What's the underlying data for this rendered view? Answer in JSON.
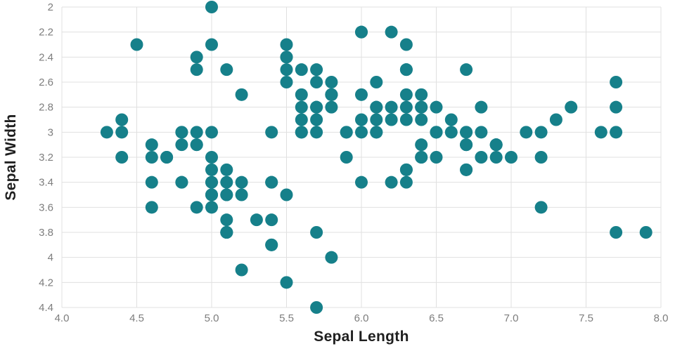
{
  "chart_data": {
    "type": "scatter",
    "title": "",
    "xlabel": "Sepal Length",
    "ylabel": "Sepal Width",
    "xlim": [
      4.0,
      8.0
    ],
    "ylim_top_to_bottom": [
      2.0,
      4.4
    ],
    "y_axis_inverted": true,
    "grid": true,
    "legend": "none",
    "dot_color": "#16808a",
    "grid_color": "#e0e0e0",
    "tick_label_color": "#7d7d7d",
    "x_ticks": [
      "4.0",
      "4.5",
      "5.0",
      "5.5",
      "6.0",
      "6.5",
      "7.0",
      "7.5",
      "8.0"
    ],
    "x_tick_values": [
      4.0,
      4.5,
      5.0,
      5.5,
      6.0,
      6.5,
      7.0,
      7.5,
      8.0
    ],
    "y_ticks": [
      "2",
      "2.2",
      "2.4",
      "2.6",
      "2.8",
      "3",
      "3.2",
      "3.4",
      "3.6",
      "3.8",
      "4",
      "4.2",
      "4.4"
    ],
    "y_tick_values": [
      2.0,
      2.2,
      2.4,
      2.6,
      2.8,
      3.0,
      3.2,
      3.4,
      3.6,
      3.8,
      4.0,
      4.2,
      4.4
    ],
    "points": [
      [
        5.1,
        3.5
      ],
      [
        4.9,
        3.0
      ],
      [
        4.7,
        3.2
      ],
      [
        4.6,
        3.1
      ],
      [
        5.0,
        3.6
      ],
      [
        5.4,
        3.9
      ],
      [
        4.6,
        3.4
      ],
      [
        5.0,
        3.4
      ],
      [
        4.4,
        2.9
      ],
      [
        4.9,
        3.1
      ],
      [
        5.4,
        3.7
      ],
      [
        4.8,
        3.4
      ],
      [
        4.8,
        3.0
      ],
      [
        4.3,
        3.0
      ],
      [
        5.8,
        4.0
      ],
      [
        5.7,
        4.4
      ],
      [
        5.4,
        3.9
      ],
      [
        5.1,
        3.5
      ],
      [
        5.7,
        3.8
      ],
      [
        5.1,
        3.8
      ],
      [
        5.4,
        3.4
      ],
      [
        5.1,
        3.7
      ],
      [
        4.6,
        3.6
      ],
      [
        5.1,
        3.3
      ],
      [
        4.8,
        3.4
      ],
      [
        5.0,
        3.0
      ],
      [
        5.0,
        3.4
      ],
      [
        5.2,
        3.5
      ],
      [
        5.2,
        3.4
      ],
      [
        4.7,
        3.2
      ],
      [
        4.8,
        3.1
      ],
      [
        5.4,
        3.4
      ],
      [
        5.2,
        4.1
      ],
      [
        5.5,
        4.2
      ],
      [
        4.9,
        3.1
      ],
      [
        5.0,
        3.2
      ],
      [
        5.5,
        3.5
      ],
      [
        4.9,
        3.6
      ],
      [
        4.4,
        3.0
      ],
      [
        5.1,
        3.4
      ],
      [
        5.0,
        3.5
      ],
      [
        4.5,
        2.3
      ],
      [
        4.4,
        3.2
      ],
      [
        5.0,
        3.5
      ],
      [
        5.1,
        3.8
      ],
      [
        4.8,
        3.0
      ],
      [
        5.1,
        3.8
      ],
      [
        4.6,
        3.2
      ],
      [
        5.3,
        3.7
      ],
      [
        5.0,
        3.3
      ],
      [
        7.0,
        3.2
      ],
      [
        6.4,
        3.2
      ],
      [
        6.9,
        3.1
      ],
      [
        5.5,
        2.3
      ],
      [
        6.5,
        2.8
      ],
      [
        5.7,
        2.8
      ],
      [
        6.3,
        3.3
      ],
      [
        4.9,
        2.4
      ],
      [
        6.6,
        2.9
      ],
      [
        5.2,
        2.7
      ],
      [
        5.0,
        2.0
      ],
      [
        5.9,
        3.0
      ],
      [
        6.0,
        2.2
      ],
      [
        6.1,
        2.9
      ],
      [
        5.6,
        2.9
      ],
      [
        6.7,
        3.1
      ],
      [
        5.6,
        3.0
      ],
      [
        5.8,
        2.7
      ],
      [
        6.2,
        2.2
      ],
      [
        5.6,
        2.5
      ],
      [
        5.9,
        3.2
      ],
      [
        6.1,
        2.8
      ],
      [
        6.3,
        2.5
      ],
      [
        6.1,
        2.8
      ],
      [
        6.4,
        2.9
      ],
      [
        6.6,
        3.0
      ],
      [
        6.8,
        2.8
      ],
      [
        6.7,
        3.0
      ],
      [
        6.0,
        2.9
      ],
      [
        5.7,
        2.6
      ],
      [
        5.5,
        2.4
      ],
      [
        5.5,
        2.4
      ],
      [
        5.8,
        2.7
      ],
      [
        6.0,
        2.7
      ],
      [
        5.4,
        3.0
      ],
      [
        6.0,
        3.4
      ],
      [
        6.7,
        3.1
      ],
      [
        6.3,
        2.3
      ],
      [
        5.6,
        3.0
      ],
      [
        5.5,
        2.5
      ],
      [
        5.5,
        2.6
      ],
      [
        6.1,
        3.0
      ],
      [
        5.8,
        2.6
      ],
      [
        5.0,
        2.3
      ],
      [
        5.6,
        2.7
      ],
      [
        5.7,
        3.0
      ],
      [
        5.7,
        2.9
      ],
      [
        6.2,
        2.9
      ],
      [
        5.1,
        2.5
      ],
      [
        5.7,
        2.8
      ],
      [
        6.3,
        3.3
      ],
      [
        5.8,
        2.7
      ],
      [
        7.1,
        3.0
      ],
      [
        6.3,
        2.9
      ],
      [
        6.5,
        3.0
      ],
      [
        7.6,
        3.0
      ],
      [
        4.9,
        2.5
      ],
      [
        7.3,
        2.9
      ],
      [
        6.7,
        2.5
      ],
      [
        7.2,
        3.6
      ],
      [
        6.5,
        3.2
      ],
      [
        6.4,
        2.7
      ],
      [
        6.8,
        3.0
      ],
      [
        5.7,
        2.5
      ],
      [
        5.8,
        2.8
      ],
      [
        6.4,
        3.2
      ],
      [
        6.5,
        3.0
      ],
      [
        7.7,
        3.8
      ],
      [
        7.7,
        2.6
      ],
      [
        6.0,
        2.2
      ],
      [
        6.9,
        3.2
      ],
      [
        5.6,
        2.8
      ],
      [
        7.7,
        2.8
      ],
      [
        6.3,
        2.7
      ],
      [
        6.7,
        3.3
      ],
      [
        7.2,
        3.2
      ],
      [
        6.2,
        2.8
      ],
      [
        6.1,
        3.0
      ],
      [
        6.4,
        2.8
      ],
      [
        7.2,
        3.0
      ],
      [
        7.4,
        2.8
      ],
      [
        7.9,
        3.8
      ],
      [
        6.4,
        2.8
      ],
      [
        6.3,
        2.8
      ],
      [
        6.1,
        2.6
      ],
      [
        7.7,
        3.0
      ],
      [
        6.3,
        3.4
      ],
      [
        6.4,
        3.1
      ],
      [
        6.0,
        3.0
      ],
      [
        6.9,
        3.1
      ],
      [
        6.7,
        3.1
      ],
      [
        6.9,
        3.1
      ],
      [
        5.8,
        2.7
      ],
      [
        6.8,
        3.2
      ],
      [
        6.7,
        3.3
      ],
      [
        6.7,
        3.0
      ],
      [
        6.3,
        2.5
      ],
      [
        6.5,
        3.0
      ],
      [
        6.2,
        3.4
      ],
      [
        5.9,
        3.0
      ]
    ]
  }
}
